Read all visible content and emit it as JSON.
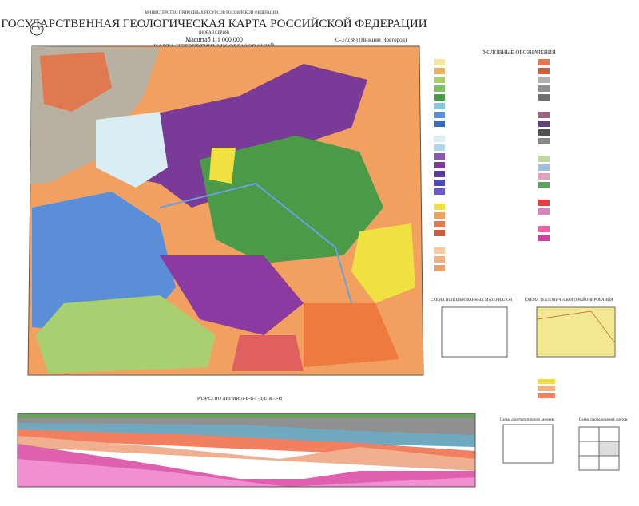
{
  "header": {
    "ministry": "МИНИСТЕРСТВО ПРИРОДНЫХ РЕСУРСОВ РОССИЙСКОЙ ФЕДЕРАЦИИ",
    "title": "ГОСУДАРСТВЕННАЯ ГЕОЛОГИЧЕСКАЯ КАРТА РОССИЙСКОЙ ФЕДЕРАЦИИ",
    "series": "(НОВАЯ СЕРИЯ)",
    "scale": "Масштаб 1:1 000 000",
    "map_title": "КАРТА ЧЕТВЕРТИЧНЫХ ОБРАЗОВАНИЙ",
    "sheet": "O-37,(38) (Нижний Новгород)"
  },
  "legend": {
    "title": "УСЛОВНЫЕ ОБОЗНАЧЕНИЯ"
  },
  "schemes": [
    {
      "title": "СХЕМА ИСПОЛЬЗОВАННЫХ МАТЕРИАЛОВ"
    },
    {
      "title": "СХЕМА ТЕКТОНИЧЕСКОГО РАЙОНИРОВАНИЯ"
    },
    {
      "title": "Схема дочетвертичного деления"
    },
    {
      "title": "Схема расположения листов"
    }
  ],
  "section": {
    "title": "РАЗРЕЗ ПО ЛИНИИ А-Б-В-Г-Д-Е-Ж-З-И"
  }
}
